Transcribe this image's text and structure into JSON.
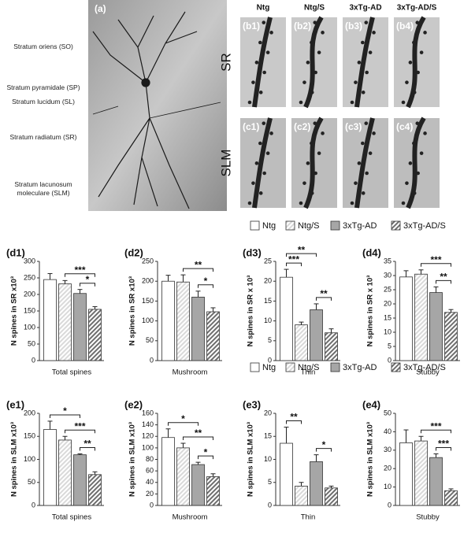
{
  "figure": {
    "a": "(a)",
    "layers": [
      "Stratum oriens (SO)",
      "Stratum pyramidale (SP)",
      "Stratum lucidum (SL)",
      "Stratum radiatum (SR)",
      "Stratum lacunosum moleculare (SLM)"
    ],
    "columns": [
      "Ntg",
      "Ntg/S",
      "3xTg-AD",
      "3xTg-AD/S"
    ],
    "rows": [
      "SR",
      "SLM"
    ],
    "b": [
      "(b1)",
      "(b2)",
      "(b3)",
      "(b4)"
    ],
    "c": [
      "(c1)",
      "(c2)",
      "(c3)",
      "(c4)"
    ]
  },
  "legend": [
    {
      "name": "Ntg",
      "color": "#ffffff",
      "hatch": false
    },
    {
      "name": "Ntg/S",
      "color": "#d9d9d9",
      "hatch": true
    },
    {
      "name": "3xTg-AD",
      "color": "#a6a6a6",
      "hatch": false
    },
    {
      "name": "3xTg-AD/S",
      "color": "#6e6e6e",
      "hatch": true
    }
  ],
  "chart_data": [
    {
      "type": "bar",
      "label": "(d1)",
      "ylabel": "N spines in SR x10³",
      "xlabel": "Total spines",
      "values": [
        245,
        232,
        203,
        155
      ],
      "errors": [
        18,
        10,
        12,
        8
      ],
      "ylim": [
        0,
        300
      ],
      "yticks": [
        0,
        50,
        100,
        150,
        200,
        250,
        300
      ],
      "annotations": [
        {
          "text": "*",
          "from": 2,
          "to": 3
        },
        {
          "text": "***",
          "from": 1,
          "to": 3
        }
      ]
    },
    {
      "type": "bar",
      "label": "(d2)",
      "ylabel": "N spines in SR x10³",
      "xlabel": "Mushroom",
      "values": [
        200,
        198,
        160,
        123
      ],
      "errors": [
        15,
        18,
        15,
        10
      ],
      "ylim": [
        0,
        250
      ],
      "yticks": [
        0,
        50,
        100,
        150,
        200,
        250
      ],
      "annotations": [
        {
          "text": "*",
          "from": 2,
          "to": 3
        },
        {
          "text": "**",
          "from": 1,
          "to": 3
        }
      ]
    },
    {
      "type": "bar",
      "label": "(d3)",
      "ylabel": "N spines in SR x 10³",
      "xlabel": "Thin",
      "values": [
        21,
        9,
        12.8,
        7
      ],
      "errors": [
        2,
        0.7,
        1.5,
        1
      ],
      "ylim": [
        0,
        25
      ],
      "yticks": [
        0,
        5,
        10,
        15,
        20,
        25
      ],
      "annotations": [
        {
          "text": "**",
          "from": 2,
          "to": 3
        },
        {
          "text": "***",
          "from": 0,
          "to": 1
        },
        {
          "text": "**",
          "from": 0,
          "to": 2
        }
      ]
    },
    {
      "type": "bar",
      "label": "(d4)",
      "ylabel": "N spines in SR x 10³",
      "xlabel": "Stubby",
      "values": [
        29.5,
        30.5,
        24,
        17
      ],
      "errors": [
        2.2,
        1.5,
        2,
        1
      ],
      "ylim": [
        0,
        35
      ],
      "yticks": [
        0,
        5,
        10,
        15,
        20,
        25,
        30,
        35
      ],
      "annotations": [
        {
          "text": "**",
          "from": 2,
          "to": 3
        },
        {
          "text": "***",
          "from": 1,
          "to": 3
        }
      ]
    },
    {
      "type": "bar",
      "label": "(e1)",
      "ylabel": "N spines in SLM x10³",
      "xlabel": "Total spines",
      "values": [
        165,
        142,
        110,
        67
      ],
      "errors": [
        18,
        8,
        2,
        6
      ],
      "ylim": [
        0,
        200
      ],
      "yticks": [
        0,
        50,
        100,
        150,
        200
      ],
      "annotations": [
        {
          "text": "**",
          "from": 2,
          "to": 3
        },
        {
          "text": "***",
          "from": 1,
          "to": 3
        },
        {
          "text": "*",
          "from": 0,
          "to": 2
        }
      ]
    },
    {
      "type": "bar",
      "label": "(e2)",
      "ylabel": "N spines in SLM x10³",
      "xlabel": "Mushroom",
      "values": [
        118,
        100,
        71,
        50
      ],
      "errors": [
        15,
        8,
        4,
        5
      ],
      "ylim": [
        0,
        160
      ],
      "yticks": [
        0,
        20,
        40,
        60,
        80,
        100,
        120,
        140,
        160
      ],
      "annotations": [
        {
          "text": "*",
          "from": 2,
          "to": 3
        },
        {
          "text": "**",
          "from": 1,
          "to": 3
        },
        {
          "text": "*",
          "from": 0,
          "to": 2
        }
      ]
    },
    {
      "type": "bar",
      "label": "(e3)",
      "ylabel": "N spines in SLM x10³",
      "xlabel": "Thin",
      "values": [
        13.5,
        4.2,
        9.5,
        3.8
      ],
      "errors": [
        3.5,
        0.8,
        1.5,
        0.4
      ],
      "ylim": [
        0,
        20
      ],
      "yticks": [
        0,
        5,
        10,
        15,
        20
      ],
      "annotations": [
        {
          "text": "*",
          "from": 2,
          "to": 3
        },
        {
          "text": "**",
          "from": 0,
          "to": 1
        }
      ]
    },
    {
      "type": "bar",
      "label": "(e4)",
      "ylabel": "N spines in SLM x10³",
      "xlabel": "Stubby",
      "values": [
        34,
        35,
        26,
        8
      ],
      "errors": [
        7,
        2.5,
        2,
        1
      ],
      "ylim": [
        0,
        50
      ],
      "yticks": [
        0,
        10,
        20,
        30,
        40,
        50
      ],
      "annotations": [
        {
          "text": "***",
          "from": 2,
          "to": 3
        },
        {
          "text": "***",
          "from": 1,
          "to": 3
        }
      ]
    }
  ]
}
